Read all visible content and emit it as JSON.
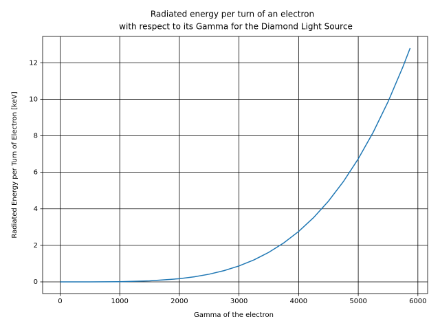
{
  "chart_data": {
    "type": "line",
    "title": "Radiated energy per turn of an electron",
    "subtitle": "with respect to its Gamma for the Diamond Light Source",
    "x_label": "Gamma of the electron",
    "y_label": "Radiated Energy per Turn of Electron [keV]",
    "x": [
      0,
      500,
      1000,
      1500,
      2000,
      2250,
      2500,
      2750,
      3000,
      3250,
      3500,
      3750,
      4000,
      4250,
      4500,
      4750,
      5000,
      5250,
      5500,
      5750,
      5870
    ],
    "series": [
      {
        "color": "#1f77b4",
        "values": [
          0,
          0.001,
          0.011,
          0.055,
          0.172,
          0.276,
          0.421,
          0.617,
          0.873,
          1.203,
          1.618,
          2.132,
          2.76,
          3.517,
          4.42,
          5.488,
          6.738,
          8.189,
          9.864,
          11.784,
          12.8
        ]
      }
    ],
    "xlim": [
      -293.5,
      6163.5
    ],
    "ylim": [
      -0.64,
      13.44
    ],
    "xticks": [
      0,
      1000,
      2000,
      3000,
      4000,
      5000,
      6000
    ],
    "yticks": [
      0,
      2,
      4,
      6,
      8,
      10,
      12
    ],
    "grid": true
  }
}
